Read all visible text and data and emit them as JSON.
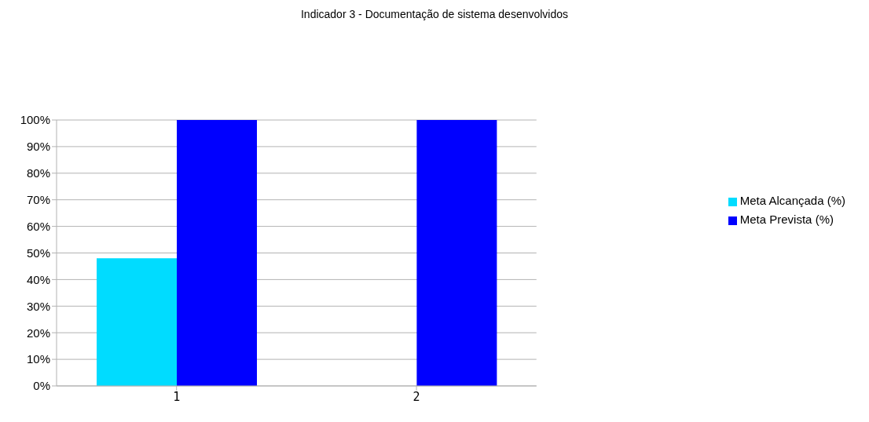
{
  "chart_data": {
    "type": "bar",
    "title": "Indicador 3 - Documentação de sistema desenvolvidos",
    "categories": [
      "1",
      "2"
    ],
    "series": [
      {
        "name": "Meta Alcançada (%)",
        "color": "#00dcff",
        "values": [
          48,
          0
        ]
      },
      {
        "name": "Meta Prevista (%)",
        "color": "#0000ff",
        "values": [
          100,
          100
        ]
      }
    ],
    "ylim": [
      0,
      100
    ],
    "yticks": [
      {
        "value": 0,
        "label": "0%"
      },
      {
        "value": 10,
        "label": "10%"
      },
      {
        "value": 20,
        "label": "20%"
      },
      {
        "value": 30,
        "label": "30%"
      },
      {
        "value": 40,
        "label": "40%"
      },
      {
        "value": 50,
        "label": "50%"
      },
      {
        "value": 60,
        "label": "60%"
      },
      {
        "value": 70,
        "label": "70%"
      },
      {
        "value": 80,
        "label": "80%"
      },
      {
        "value": 90,
        "label": "90%"
      },
      {
        "value": 100,
        "label": "100%"
      }
    ],
    "grid": "y",
    "legend": "right"
  }
}
